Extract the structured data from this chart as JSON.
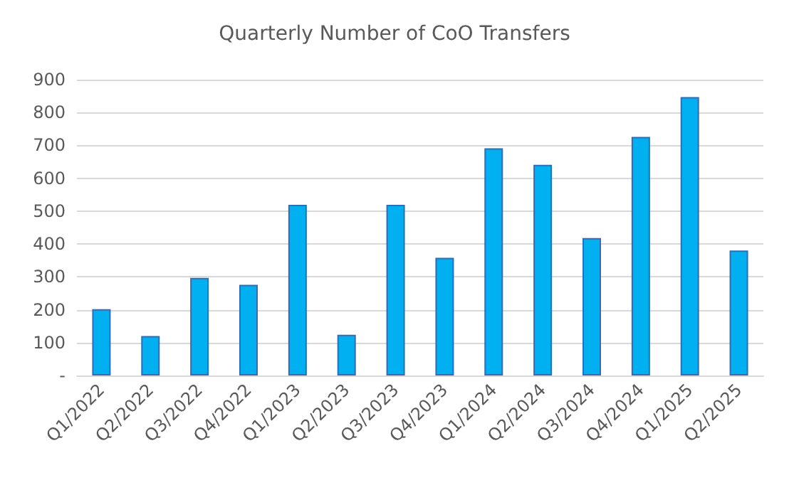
{
  "chart_data": {
    "type": "bar",
    "title": "Quarterly Number of CoO Transfers",
    "categories": [
      "Q1/2022",
      "Q2/2022",
      "Q3/2022",
      "Q4/2022",
      "Q1/2023",
      "Q2/2023",
      "Q3/2023",
      "Q4/2023",
      "Q1/2024",
      "Q2/2024",
      "Q3/2024",
      "Q4/2024",
      "Q1/2025",
      "Q2/2025"
    ],
    "values": [
      202,
      120,
      297,
      276,
      519,
      124,
      519,
      358,
      691,
      641,
      418,
      726,
      847,
      380
    ],
    "color": "#00b0f0",
    "ylim": [
      0,
      900
    ],
    "yticks": [
      {
        "value": 0,
        "label": "-"
      },
      100,
      200,
      300,
      400,
      500,
      600,
      700,
      800,
      900
    ],
    "grid": "y"
  }
}
